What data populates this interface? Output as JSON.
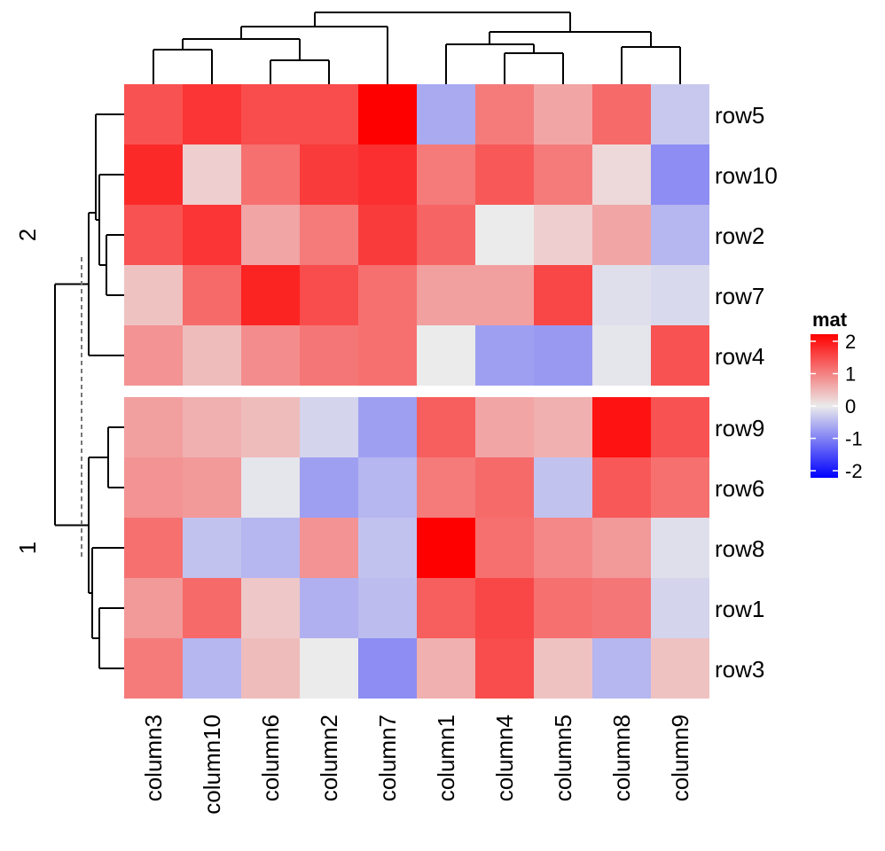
{
  "chart_data": {
    "type": "heatmap",
    "title": "",
    "columns": [
      "column3",
      "column10",
      "column6",
      "column2",
      "column7",
      "column1",
      "column4",
      "column5",
      "column8",
      "column9"
    ],
    "row_groups": [
      {
        "label": "2",
        "rows": [
          "row5",
          "row10",
          "row2",
          "row7",
          "row4"
        ]
      },
      {
        "label": "1",
        "rows": [
          "row9",
          "row6",
          "row8",
          "row1",
          "row3"
        ]
      }
    ],
    "values": {
      "row5": [
        1.3,
        1.55,
        1.35,
        1.35,
        2.05,
        -0.55,
        0.95,
        0.6,
        1.1,
        -0.3
      ],
      "row10": [
        1.65,
        0.25,
        1.05,
        1.5,
        1.6,
        0.95,
        1.25,
        0.95,
        0.15,
        -0.8
      ],
      "row2": [
        1.3,
        1.55,
        0.6,
        0.95,
        1.5,
        1.15,
        0.0,
        0.25,
        0.6,
        -0.45
      ],
      "row7": [
        0.35,
        1.1,
        1.7,
        1.35,
        1.05,
        0.65,
        0.65,
        1.4,
        -0.1,
        -0.15
      ],
      "row4": [
        0.75,
        0.4,
        0.8,
        1.0,
        1.05,
        0.0,
        -0.65,
        -0.7,
        -0.05,
        1.3
      ],
      "row9": [
        0.65,
        0.5,
        0.4,
        -0.2,
        -0.65,
        1.2,
        0.6,
        0.5,
        1.85,
        1.3
      ],
      "row6": [
        0.75,
        0.7,
        -0.05,
        -0.65,
        -0.45,
        0.95,
        1.1,
        -0.35,
        1.25,
        1.05
      ],
      "row8": [
        1.05,
        -0.35,
        -0.45,
        0.75,
        -0.35,
        2.05,
        1.05,
        0.85,
        0.7,
        -0.1
      ],
      "row1": [
        0.7,
        1.1,
        0.3,
        -0.5,
        -0.4,
        1.2,
        1.4,
        1.05,
        1.0,
        -0.2
      ],
      "row3": [
        0.95,
        -0.45,
        0.4,
        0.0,
        -0.8,
        0.5,
        1.35,
        0.35,
        -0.45,
        0.35
      ]
    },
    "row_group_label_position": "left",
    "column_dendrogram": true,
    "row_dendrogram": true,
    "legend": {
      "title": "mat",
      "placement": "right",
      "ticks": [
        2,
        1,
        0,
        -1,
        -2
      ],
      "tick_labels": [
        "2",
        "1",
        "0",
        "-1",
        "-2"
      ],
      "range": [
        -2,
        2
      ]
    },
    "colors": {
      "low": "#0000ff",
      "mid": "#ebebeb",
      "high": "#ff0000"
    },
    "grid": false
  }
}
